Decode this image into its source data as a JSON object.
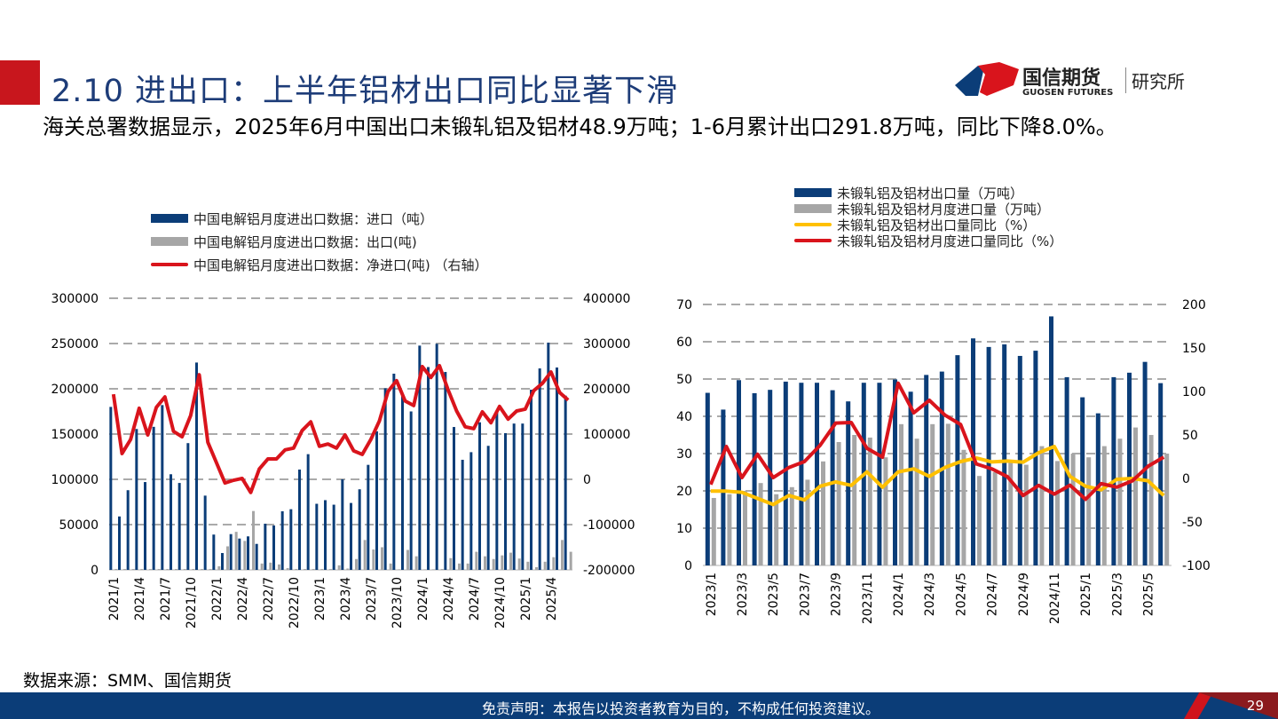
{
  "header": {
    "title": "2.10 进出口：上半年铝材出口同比显著下滑",
    "subtitle": "海关总署数据显示，2025年6月中国出口未锻轧铝及铝材48.9万吨；1-6月累计出口291.8万吨，同比下降8.0%。"
  },
  "logo": {
    "cn": "国信期货",
    "en": "GUOSEN FUTURES",
    "institute": "研究所"
  },
  "source": "数据来源：SMM、国信期货",
  "footer": {
    "disclaimer": "免责声明：本报告以投资者教育为目的，不构成任何投资建议。",
    "page": "29"
  },
  "colors": {
    "navy": "#0b3d78",
    "gray": "#a6a6a6",
    "red": "#d9141c",
    "yellow": "#ffc000"
  },
  "chart_data": [
    {
      "type": "bar+line",
      "categories": [
        "2021/1",
        "2021/2",
        "2021/3",
        "2021/4",
        "2021/5",
        "2021/6",
        "2021/7",
        "2021/8",
        "2021/9",
        "2021/10",
        "2021/11",
        "2021/12",
        "2022/1",
        "2022/2",
        "2022/3",
        "2022/4",
        "2022/5",
        "2022/6",
        "2022/7",
        "2022/8",
        "2022/9",
        "2022/10",
        "2022/11",
        "2022/12",
        "2023/1",
        "2023/2",
        "2023/3",
        "2023/4",
        "2023/5",
        "2023/6",
        "2023/7",
        "2023/8",
        "2023/9",
        "2023/10",
        "2023/11",
        "2023/12",
        "2024/1",
        "2024/2",
        "2024/3",
        "2024/4",
        "2024/5",
        "2024/6",
        "2024/7",
        "2024/8",
        "2024/9",
        "2024/10",
        "2024/11",
        "2024/12",
        "2025/1",
        "2025/2",
        "2025/3",
        "2025/4",
        "2025/5",
        "2025/6"
      ],
      "tick_labels": [
        "2021/1",
        "2021/4",
        "2021/7",
        "2021/10",
        "2022/1",
        "2022/4",
        "2022/7",
        "2022/10",
        "2023/1",
        "2023/4",
        "2023/7",
        "2023/10",
        "2024/1",
        "2024/4",
        "2024/7",
        "2024/10",
        "2025/1",
        "2025/4"
      ],
      "ylim": [
        0,
        300000
      ],
      "y2lim": [
        -200000,
        400000
      ],
      "yticks": [
        "300000",
        "250000",
        "200000",
        "150000",
        "100000",
        "50000",
        "0"
      ],
      "y2ticks": [
        "400000",
        "300000",
        "200000",
        "100000",
        "0",
        "-100000",
        "-200000"
      ],
      "grid": true,
      "legend": "top",
      "series": [
        {
          "name": "中国电解铝月度进出口数据：进口（吨）",
          "kind": "bar",
          "axis": "left",
          "color": "#0b3d78",
          "values": [
            180000,
            59000,
            88000,
            155600,
            97000,
            158000,
            182000,
            105600,
            96000,
            140000,
            229000,
            82000,
            39000,
            18600,
            39500,
            34600,
            37000,
            28700,
            51000,
            49000,
            64700,
            67000,
            110800,
            127800,
            73000,
            77000,
            72000,
            100000,
            73900,
            89000,
            116000,
            153000,
            200600,
            216700,
            194800,
            175000,
            247700,
            224000,
            249700,
            218600,
            157800,
            121600,
            130000,
            163000,
            137000,
            174500,
            151000,
            161600,
            161600,
            199000,
            222500,
            251000,
            223500,
            192400
          ]
        },
        {
          "name": "中国电解铝月度进出口数据：出口(吨)",
          "kind": "bar",
          "axis": "left",
          "color": "#a6a6a6",
          "values": [
            1000,
            1000,
            1000,
            1000,
            1000,
            1000,
            1000,
            1000,
            1000,
            1000,
            1000,
            1000,
            4000,
            26000,
            42000,
            32000,
            65000,
            7000,
            8000,
            6000,
            2000,
            1000,
            1000,
            1000,
            1000,
            1000,
            5000,
            1500,
            12000,
            33000,
            22500,
            25000,
            7000,
            500,
            22000,
            15000,
            500,
            500,
            1000,
            13000,
            7000,
            7000,
            20000,
            15000,
            12000,
            16000,
            19000,
            12500,
            9000,
            3000,
            9000,
            14000,
            33000,
            20000
          ]
        },
        {
          "name": "中国电解铝月度进出口数据：净进口(吨) （右轴）",
          "kind": "line",
          "axis": "right",
          "color": "#d9141c",
          "values": [
            188000,
            57000,
            88000,
            157000,
            98000,
            159000,
            182000,
            106000,
            94000,
            141000,
            231000,
            82000,
            37000,
            -8000,
            -2000,
            2000,
            -29000,
            23000,
            45000,
            45000,
            65000,
            69000,
            108000,
            127000,
            73000,
            78000,
            69000,
            98000,
            63000,
            55000,
            88000,
            129000,
            194000,
            218000,
            173000,
            163000,
            249000,
            225000,
            251000,
            198000,
            151000,
            116000,
            112000,
            149000,
            125000,
            161000,
            133000,
            151000,
            155000,
            196000,
            212000,
            237000,
            192000,
            175000
          ]
        }
      ]
    },
    {
      "type": "bar+line",
      "categories": [
        "2023/1",
        "2023/2",
        "2023/3",
        "2023/4",
        "2023/5",
        "2023/6",
        "2023/7",
        "2023/8",
        "2023/9",
        "2023/10",
        "2023/11",
        "2023/12",
        "2024/1",
        "2024/2",
        "2024/3",
        "2024/4",
        "2024/5",
        "2024/6",
        "2024/7",
        "2024/8",
        "2024/9",
        "2024/10",
        "2024/11",
        "2024/12",
        "2025/1",
        "2025/2",
        "2025/3",
        "2025/4",
        "2025/5",
        "2025/6"
      ],
      "tick_labels": [
        "2023/1",
        "2023/3",
        "2023/5",
        "2023/7",
        "2023/9",
        "2023/11",
        "2024/1",
        "2024/3",
        "2024/5",
        "2024/7",
        "2024/9",
        "2024/11",
        "2025/1",
        "2025/3",
        "2025/5"
      ],
      "ylim": [
        0,
        70
      ],
      "y2lim": [
        -100,
        200
      ],
      "yticks": [
        "70",
        "60",
        "50",
        "40",
        "30",
        "20",
        "10",
        "0"
      ],
      "y2ticks": [
        "200",
        "150",
        "100",
        "50",
        "0",
        "-50",
        "-100"
      ],
      "grid": true,
      "legend": "top",
      "series": [
        {
          "name": "未锻轧铝及铝材出口量（万吨）",
          "kind": "bar",
          "axis": "left",
          "color": "#0b3d78",
          "values": [
            46.3,
            41.8,
            49.7,
            46.2,
            47.1,
            49.3,
            49.0,
            49.0,
            47.0,
            44.0,
            49.0,
            49.0,
            49.9,
            46.6,
            51.1,
            52.0,
            56.4,
            60.9,
            58.6,
            59.3,
            56.2,
            57.6,
            66.8,
            50.5,
            45.1,
            40.8,
            50.5,
            51.7,
            54.6,
            48.9
          ]
        },
        {
          "name": "未锻轧铝及铝材月度进口量（万吨）",
          "kind": "bar",
          "axis": "left",
          "color": "#a6a6a6",
          "values": [
            18.1,
            19.1,
            20.0,
            22.1,
            19.1,
            21.0,
            23.0,
            27.9,
            33.1,
            35.0,
            34.3,
            29.0,
            37.9,
            34.0,
            37.9,
            38.0,
            31.0,
            24.0,
            25.0,
            28.0,
            27.0,
            32.0,
            28.0,
            30.0,
            29.0,
            32.0,
            34.0,
            37.0,
            35.0,
            30.0
          ]
        },
        {
          "name": "未锻轧铝及铝材出口量同比（%）",
          "kind": "line",
          "axis": "right",
          "color": "#ffc000",
          "values": [
            -14.6,
            -14.6,
            -16,
            -23,
            -30,
            -19.6,
            -24.7,
            -9,
            -4,
            -8,
            7.5,
            -10,
            7.5,
            11,
            2.4,
            12.6,
            19.4,
            23.5,
            19,
            20,
            18.7,
            29.6,
            36.7,
            2.4,
            -9,
            -13,
            -1,
            0,
            -2.7,
            -19.6
          ]
        },
        {
          "name": "未锻轧铝及铝材月度进口量同比（%）",
          "kind": "line",
          "axis": "right",
          "color": "#d9141c",
          "values": [
            -7,
            36.7,
            1,
            27.8,
            1,
            12.5,
            19.4,
            38,
            63.6,
            64.3,
            34.7,
            24.5,
            109.5,
            75.5,
            89.8,
            72.8,
            62,
            16.7,
            11,
            2,
            -19.6,
            -8,
            -18,
            -7.8,
            -24,
            -6,
            -10,
            -2.7,
            14,
            24.5
          ]
        }
      ]
    }
  ]
}
